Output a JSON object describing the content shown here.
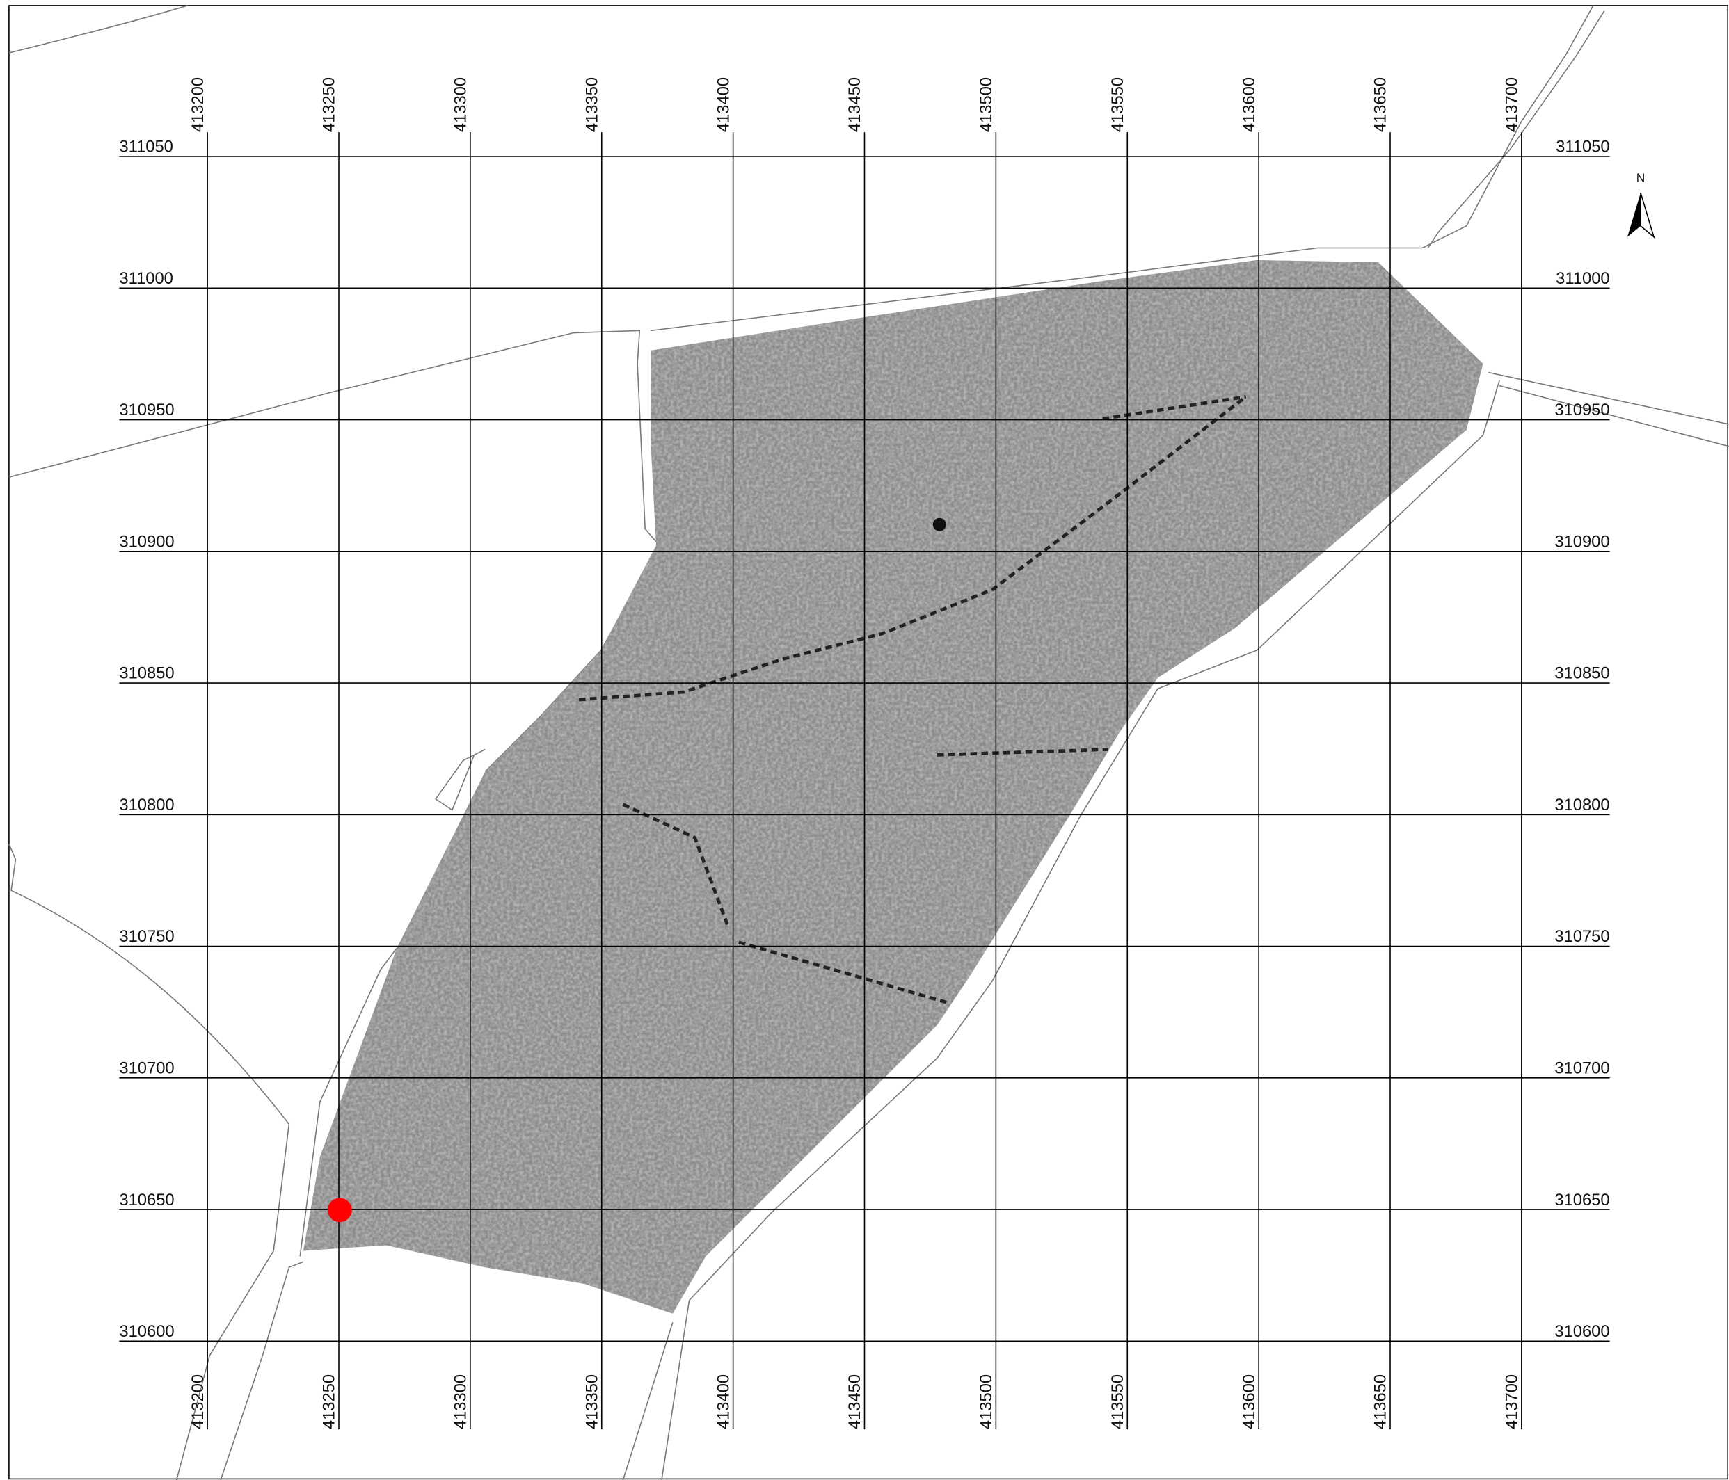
{
  "map": {
    "eastings": [
      413200,
      413250,
      413300,
      413350,
      413400,
      413450,
      413500,
      413550,
      413600,
      413650,
      413700
    ],
    "northings": [
      311050,
      311000,
      310950,
      310900,
      310850,
      310800,
      310750,
      310700,
      310650,
      310600
    ],
    "north_label": "N"
  }
}
